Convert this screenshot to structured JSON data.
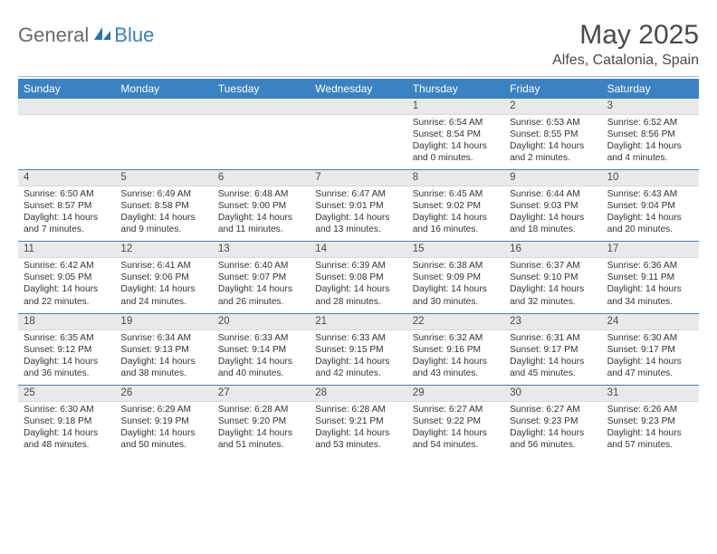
{
  "brand": {
    "part1": "General",
    "part2": "Blue"
  },
  "title": "May 2025",
  "location": "Alfes, Catalonia, Spain",
  "colors": {
    "header_bg": "#3a82c4",
    "daynum_bg": "#e9e9e9",
    "rule": "#b8b8b8",
    "week_divider": "#3a82c4"
  },
  "day_labels": [
    "Sunday",
    "Monday",
    "Tuesday",
    "Wednesday",
    "Thursday",
    "Friday",
    "Saturday"
  ],
  "weeks": [
    {
      "nums": [
        "",
        "",
        "",
        "",
        "1",
        "2",
        "3"
      ],
      "cells": [
        {},
        {},
        {},
        {},
        {
          "sunrise": "6:54 AM",
          "sunset": "8:54 PM",
          "dl1": "Daylight: 14 hours",
          "dl2": "and 0 minutes."
        },
        {
          "sunrise": "6:53 AM",
          "sunset": "8:55 PM",
          "dl1": "Daylight: 14 hours",
          "dl2": "and 2 minutes."
        },
        {
          "sunrise": "6:52 AM",
          "sunset": "8:56 PM",
          "dl1": "Daylight: 14 hours",
          "dl2": "and 4 minutes."
        }
      ]
    },
    {
      "nums": [
        "4",
        "5",
        "6",
        "7",
        "8",
        "9",
        "10"
      ],
      "cells": [
        {
          "sunrise": "6:50 AM",
          "sunset": "8:57 PM",
          "dl1": "Daylight: 14 hours",
          "dl2": "and 7 minutes."
        },
        {
          "sunrise": "6:49 AM",
          "sunset": "8:58 PM",
          "dl1": "Daylight: 14 hours",
          "dl2": "and 9 minutes."
        },
        {
          "sunrise": "6:48 AM",
          "sunset": "9:00 PM",
          "dl1": "Daylight: 14 hours",
          "dl2": "and 11 minutes."
        },
        {
          "sunrise": "6:47 AM",
          "sunset": "9:01 PM",
          "dl1": "Daylight: 14 hours",
          "dl2": "and 13 minutes."
        },
        {
          "sunrise": "6:45 AM",
          "sunset": "9:02 PM",
          "dl1": "Daylight: 14 hours",
          "dl2": "and 16 minutes."
        },
        {
          "sunrise": "6:44 AM",
          "sunset": "9:03 PM",
          "dl1": "Daylight: 14 hours",
          "dl2": "and 18 minutes."
        },
        {
          "sunrise": "6:43 AM",
          "sunset": "9:04 PM",
          "dl1": "Daylight: 14 hours",
          "dl2": "and 20 minutes."
        }
      ]
    },
    {
      "nums": [
        "11",
        "12",
        "13",
        "14",
        "15",
        "16",
        "17"
      ],
      "cells": [
        {
          "sunrise": "6:42 AM",
          "sunset": "9:05 PM",
          "dl1": "Daylight: 14 hours",
          "dl2": "and 22 minutes."
        },
        {
          "sunrise": "6:41 AM",
          "sunset": "9:06 PM",
          "dl1": "Daylight: 14 hours",
          "dl2": "and 24 minutes."
        },
        {
          "sunrise": "6:40 AM",
          "sunset": "9:07 PM",
          "dl1": "Daylight: 14 hours",
          "dl2": "and 26 minutes."
        },
        {
          "sunrise": "6:39 AM",
          "sunset": "9:08 PM",
          "dl1": "Daylight: 14 hours",
          "dl2": "and 28 minutes."
        },
        {
          "sunrise": "6:38 AM",
          "sunset": "9:09 PM",
          "dl1": "Daylight: 14 hours",
          "dl2": "and 30 minutes."
        },
        {
          "sunrise": "6:37 AM",
          "sunset": "9:10 PM",
          "dl1": "Daylight: 14 hours",
          "dl2": "and 32 minutes."
        },
        {
          "sunrise": "6:36 AM",
          "sunset": "9:11 PM",
          "dl1": "Daylight: 14 hours",
          "dl2": "and 34 minutes."
        }
      ]
    },
    {
      "nums": [
        "18",
        "19",
        "20",
        "21",
        "22",
        "23",
        "24"
      ],
      "cells": [
        {
          "sunrise": "6:35 AM",
          "sunset": "9:12 PM",
          "dl1": "Daylight: 14 hours",
          "dl2": "and 36 minutes."
        },
        {
          "sunrise": "6:34 AM",
          "sunset": "9:13 PM",
          "dl1": "Daylight: 14 hours",
          "dl2": "and 38 minutes."
        },
        {
          "sunrise": "6:33 AM",
          "sunset": "9:14 PM",
          "dl1": "Daylight: 14 hours",
          "dl2": "and 40 minutes."
        },
        {
          "sunrise": "6:33 AM",
          "sunset": "9:15 PM",
          "dl1": "Daylight: 14 hours",
          "dl2": "and 42 minutes."
        },
        {
          "sunrise": "6:32 AM",
          "sunset": "9:16 PM",
          "dl1": "Daylight: 14 hours",
          "dl2": "and 43 minutes."
        },
        {
          "sunrise": "6:31 AM",
          "sunset": "9:17 PM",
          "dl1": "Daylight: 14 hours",
          "dl2": "and 45 minutes."
        },
        {
          "sunrise": "6:30 AM",
          "sunset": "9:17 PM",
          "dl1": "Daylight: 14 hours",
          "dl2": "and 47 minutes."
        }
      ]
    },
    {
      "nums": [
        "25",
        "26",
        "27",
        "28",
        "29",
        "30",
        "31"
      ],
      "cells": [
        {
          "sunrise": "6:30 AM",
          "sunset": "9:18 PM",
          "dl1": "Daylight: 14 hours",
          "dl2": "and 48 minutes."
        },
        {
          "sunrise": "6:29 AM",
          "sunset": "9:19 PM",
          "dl1": "Daylight: 14 hours",
          "dl2": "and 50 minutes."
        },
        {
          "sunrise": "6:28 AM",
          "sunset": "9:20 PM",
          "dl1": "Daylight: 14 hours",
          "dl2": "and 51 minutes."
        },
        {
          "sunrise": "6:28 AM",
          "sunset": "9:21 PM",
          "dl1": "Daylight: 14 hours",
          "dl2": "and 53 minutes."
        },
        {
          "sunrise": "6:27 AM",
          "sunset": "9:22 PM",
          "dl1": "Daylight: 14 hours",
          "dl2": "and 54 minutes."
        },
        {
          "sunrise": "6:27 AM",
          "sunset": "9:23 PM",
          "dl1": "Daylight: 14 hours",
          "dl2": "and 56 minutes."
        },
        {
          "sunrise": "6:26 AM",
          "sunset": "9:23 PM",
          "dl1": "Daylight: 14 hours",
          "dl2": "and 57 minutes."
        }
      ]
    }
  ],
  "labels": {
    "sunrise": "Sunrise: ",
    "sunset": "Sunset: "
  }
}
